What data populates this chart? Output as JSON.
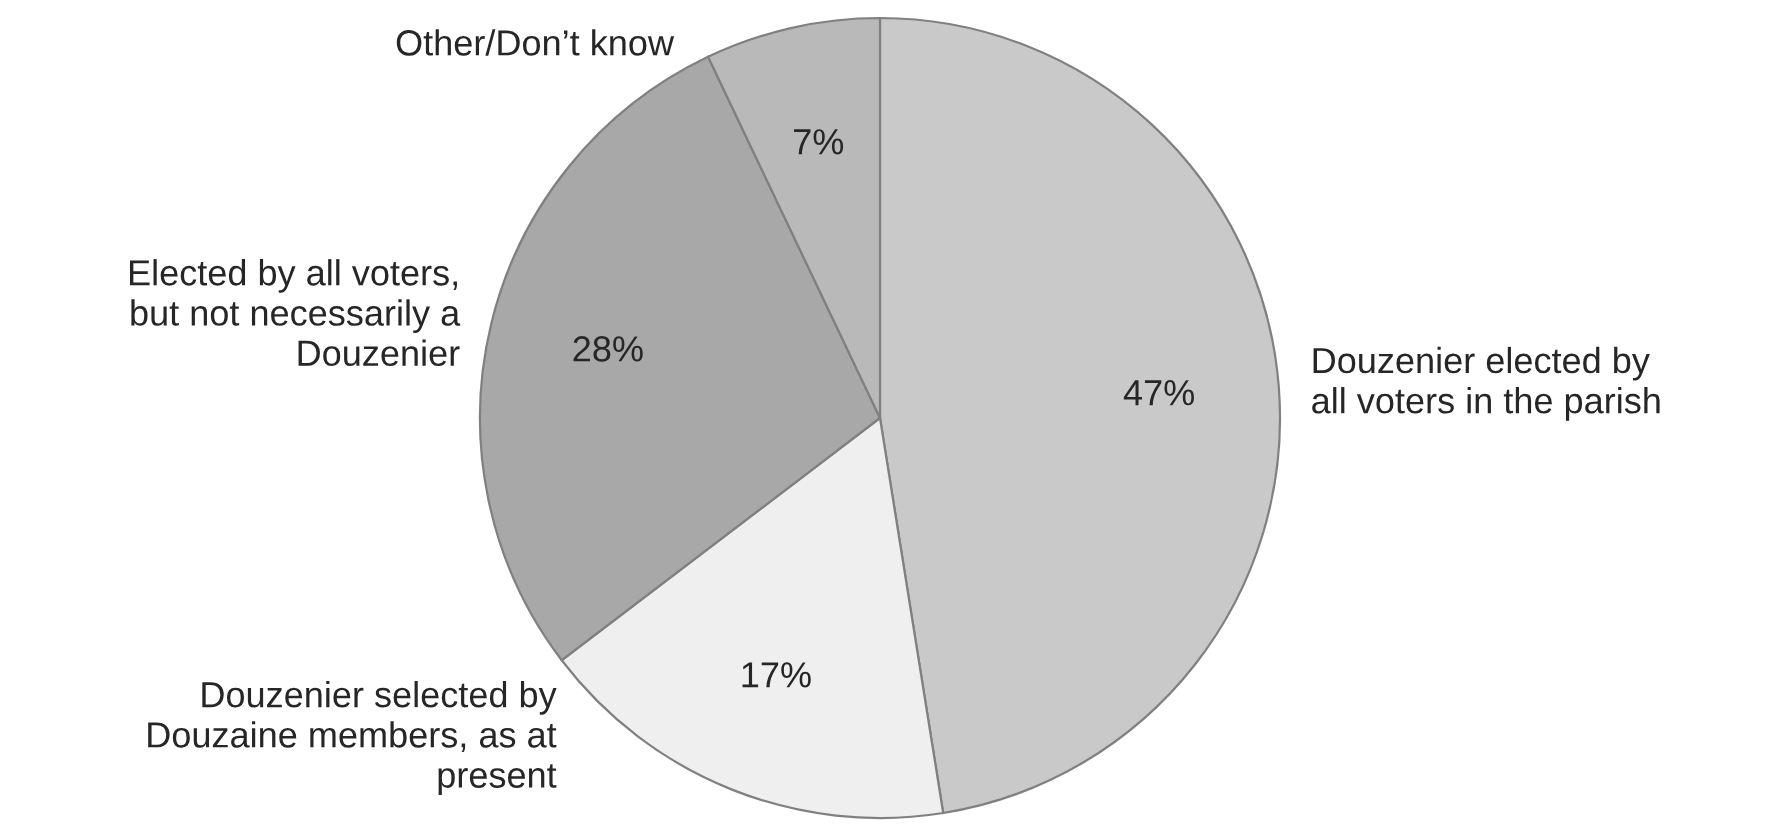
{
  "chart_data": {
    "type": "pie",
    "categories": [
      "Douzenier elected by\nall voters in the parish",
      "Douzenier selected by\nDouzaine members, as at\npresent",
      "Elected by all voters,\nbut not necessarily a\nDouzenier",
      "Other/Don’t know"
    ],
    "values": [
      47,
      17,
      28,
      7
    ],
    "colors": [
      "#c9c9c9",
      "#efefef",
      "#a8a8a8",
      "#b9b9b9"
    ],
    "value_labels": [
      "47%",
      "17%",
      "28%",
      "7%"
    ]
  }
}
